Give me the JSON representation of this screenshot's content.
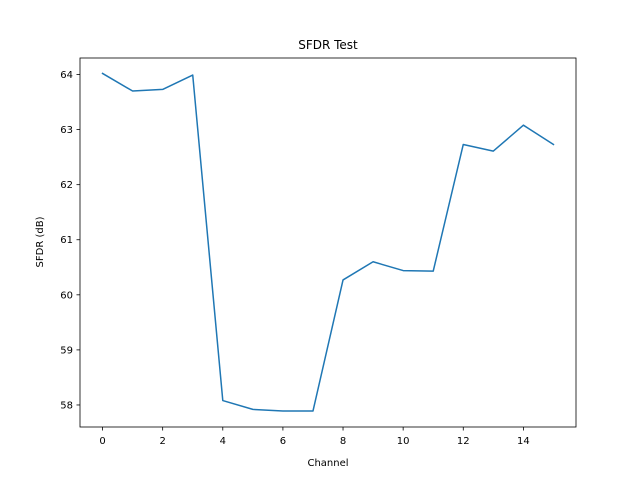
{
  "chart_data": {
    "type": "line",
    "title": "SFDR Test",
    "xlabel": "Channel",
    "ylabel": "SFDR (dB)",
    "xlim": [
      -0.75,
      15.75
    ],
    "ylim": [
      57.6,
      64.3
    ],
    "xticks": [
      0,
      2,
      4,
      6,
      8,
      10,
      12,
      14
    ],
    "yticks": [
      58,
      59,
      60,
      61,
      62,
      63,
      64
    ],
    "grid": false,
    "series": [
      {
        "name": "SFDR",
        "color": "#1f77b4",
        "x": [
          0,
          1,
          2,
          3,
          4,
          5,
          6,
          7,
          8,
          9,
          10,
          11,
          12,
          13,
          14,
          15
        ],
        "y": [
          64.02,
          63.7,
          63.73,
          63.99,
          58.08,
          57.92,
          57.89,
          57.89,
          60.27,
          60.6,
          60.44,
          60.43,
          62.73,
          62.61,
          63.08,
          62.73
        ]
      }
    ]
  }
}
